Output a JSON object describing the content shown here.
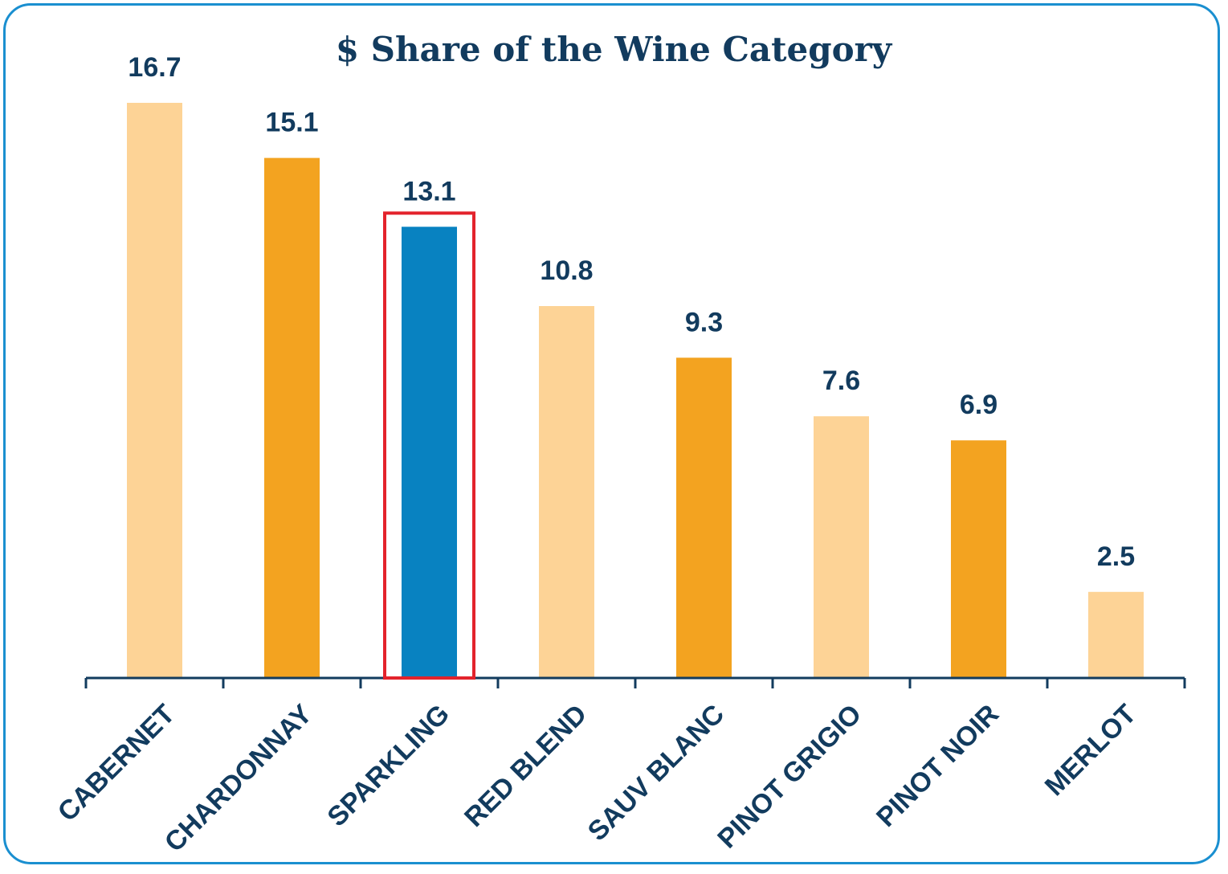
{
  "chart_data": {
    "type": "bar",
    "title": "$ Share of the Wine Category",
    "xlabel": "",
    "ylabel": "",
    "categories": [
      "CABERNET",
      "CHARDONNAY",
      "SPARKLING",
      "RED BLEND",
      "SAUV BLANC",
      "PINOT GRIGIO",
      "PINOT NOIR",
      "MERLOT"
    ],
    "values": [
      16.7,
      15.1,
      13.1,
      10.8,
      9.3,
      7.6,
      6.9,
      2.5
    ],
    "value_labels": [
      "16.7",
      "15.1",
      "13.1",
      "10.8",
      "9.3",
      "7.6",
      "6.9",
      "2.5"
    ],
    "bar_colors": [
      "#fdd396",
      "#f3a320",
      "#0882c1",
      "#fdd396",
      "#f3a320",
      "#fdd396",
      "#f3a320",
      "#fdd396"
    ],
    "highlighted_category": "SPARKLING",
    "highlight_color": "#e3232c",
    "axis_color": "#123b5e",
    "text_color": "#123b5e",
    "frame_color": "#1a8fd0",
    "ylim": [
      0,
      16.7
    ],
    "grid": false,
    "legend": "none"
  }
}
